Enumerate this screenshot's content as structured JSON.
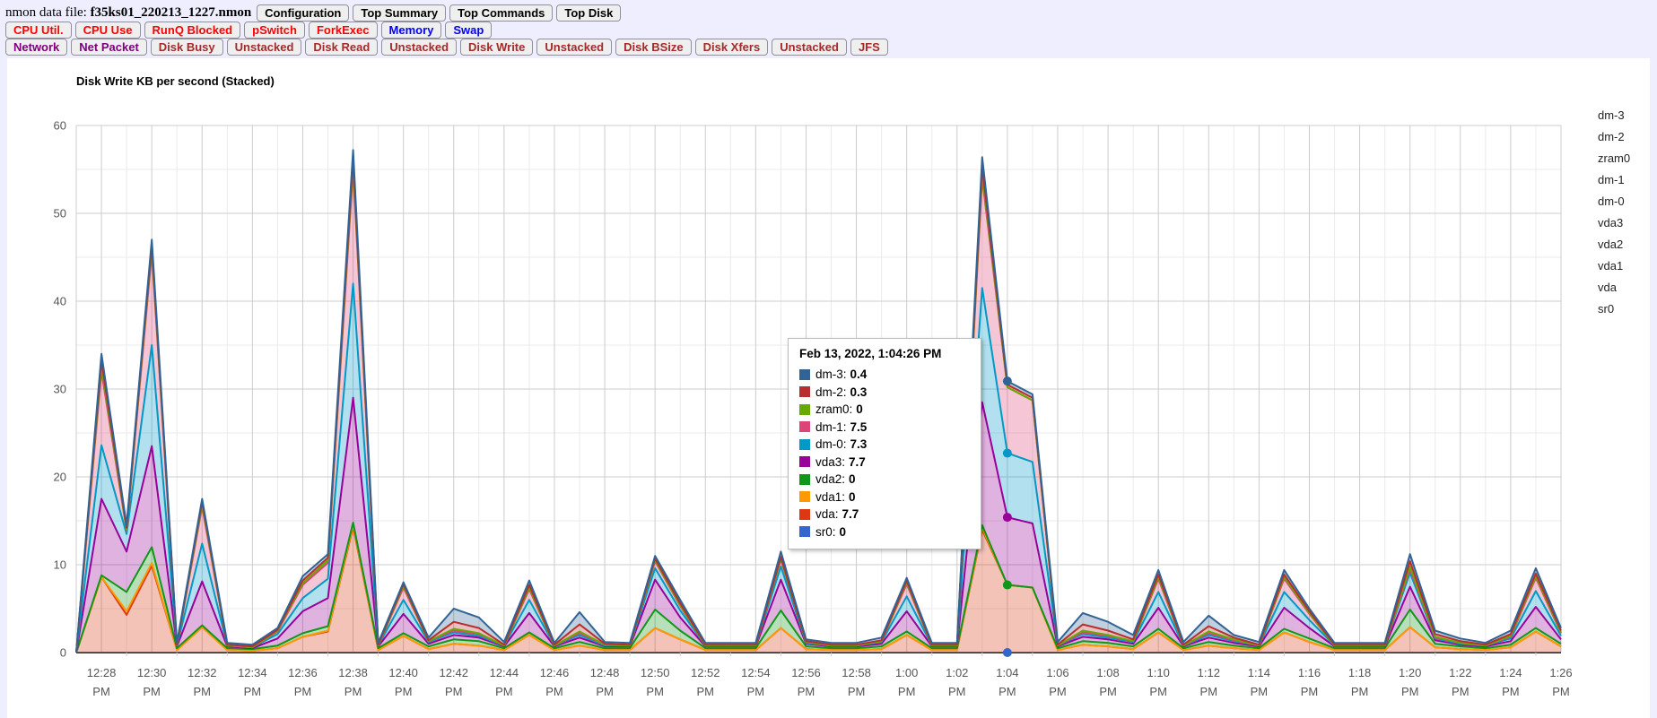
{
  "header": {
    "file_label": "nmon data file:",
    "file_name": "f35ks01_220213_1227.nmon",
    "buttons": [
      "Configuration",
      "Top Summary",
      "Top Commands",
      "Top Disk"
    ]
  },
  "nav": {
    "rows": [
      {
        "items": [
          {
            "label": "CPU Util.",
            "color": "#ff0000"
          },
          {
            "label": "CPU Use",
            "color": "#ff0000"
          },
          {
            "label": "RunQ Blocked",
            "color": "#ff0000"
          },
          {
            "label": "pSwitch",
            "color": "#ff0000"
          },
          {
            "label": "ForkExec",
            "color": "#ff0000"
          },
          {
            "label": "Memory",
            "color": "#0000ff"
          },
          {
            "label": "Swap",
            "color": "#0000ff"
          }
        ]
      },
      {
        "items": [
          {
            "label": "Network",
            "color": "#800080"
          },
          {
            "label": "Net Packet",
            "color": "#800080"
          },
          {
            "label": "Disk Busy",
            "color": "#a52a2a"
          },
          {
            "label": "Unstacked",
            "color": "#a52a2a"
          },
          {
            "label": "Disk Read",
            "color": "#a52a2a"
          },
          {
            "label": "Unstacked",
            "color": "#a52a2a"
          },
          {
            "label": "Disk Write",
            "color": "#a52a2a"
          },
          {
            "label": "Unstacked",
            "color": "#a52a2a"
          },
          {
            "label": "Disk BSize",
            "color": "#a52a2a"
          },
          {
            "label": "Disk Xfers",
            "color": "#a52a2a"
          },
          {
            "label": "Unstacked",
            "color": "#a52a2a"
          },
          {
            "label": "JFS",
            "color": "#a52a2a"
          }
        ]
      }
    ]
  },
  "chart_data": {
    "type": "area",
    "stacked": true,
    "title": "Disk Write KB per second (Stacked)",
    "xlabel": "",
    "ylabel": "",
    "ylim": [
      0,
      60
    ],
    "y_ticks": [
      0,
      10,
      20,
      30,
      40,
      50,
      60
    ],
    "grid": true,
    "legend_position": "right",
    "x_tick_labels": [
      "12:28",
      "12:30",
      "12:32",
      "12:34",
      "12:36",
      "12:38",
      "12:40",
      "12:42",
      "12:44",
      "12:46",
      "12:48",
      "12:50",
      "12:52",
      "12:54",
      "12:56",
      "12:58",
      "1:00",
      "1:02",
      "1:04",
      "1:06",
      "1:08",
      "1:10",
      "1:12",
      "1:14",
      "1:16",
      "1:18",
      "1:20",
      "1:22",
      "1:24",
      "1:26"
    ],
    "x_tick_suffix": "PM",
    "stack_order_bottom_to_top": [
      "sr0",
      "vda",
      "vda1",
      "vda2",
      "vda3",
      "dm-0",
      "dm-1",
      "zram0",
      "dm-2",
      "dm-3"
    ],
    "series": [
      {
        "name": "sr0",
        "color": "#3366cc",
        "values": [
          0,
          0,
          0,
          0,
          0,
          0,
          0,
          0,
          0,
          0,
          0,
          0,
          0,
          0,
          0,
          0,
          0,
          0,
          0,
          0,
          0,
          0,
          0,
          0,
          0,
          0,
          0,
          0,
          0,
          0,
          0,
          0,
          0,
          0,
          0,
          0,
          0,
          0,
          0,
          0,
          0,
          0,
          0,
          0,
          0,
          0,
          0,
          0,
          0,
          0,
          0,
          0,
          0,
          0,
          0,
          0,
          0,
          0,
          0,
          0
        ]
      },
      {
        "name": "vda",
        "color": "#dc3912",
        "values": [
          0,
          8.6,
          4.3,
          9.9,
          0.3,
          2.9,
          0.3,
          0.2,
          0.5,
          1.8,
          2.4,
          14.3,
          0.3,
          1.9,
          0.4,
          1.0,
          0.8,
          0.3,
          2.0,
          0.3,
          0.8,
          0.3,
          0.3,
          2.8,
          1.5,
          0.3,
          0.3,
          0.3,
          2.8,
          0.4,
          0.3,
          0.3,
          0.4,
          2.0,
          0.3,
          0.3,
          14.0,
          7.7,
          7.4,
          0.3,
          0.9,
          0.7,
          0.4,
          2.3,
          0.3,
          0.8,
          0.5,
          0.3,
          2.3,
          1.2,
          0.3,
          0.3,
          0.3,
          2.9,
          0.6,
          0.4,
          0.3,
          0.6,
          2.4,
          0.7
        ]
      },
      {
        "name": "vda1",
        "color": "#ff9900",
        "values": [
          0,
          0,
          0.4,
          0.3,
          0,
          0,
          0,
          0,
          0,
          0,
          0.1,
          0.2,
          0,
          0,
          0,
          0,
          0,
          0,
          0,
          0,
          0,
          0,
          0,
          0,
          0,
          0,
          0,
          0,
          0,
          0,
          0,
          0,
          0,
          0,
          0,
          0,
          0.2,
          0,
          0,
          0,
          0,
          0,
          0,
          0,
          0,
          0,
          0,
          0,
          0,
          0,
          0,
          0,
          0,
          0,
          0,
          0,
          0,
          0,
          0,
          0
        ]
      },
      {
        "name": "vda2",
        "color": "#109618",
        "values": [
          0,
          0.2,
          2.2,
          1.8,
          0.2,
          0.2,
          0.2,
          0.2,
          0.3,
          0.4,
          0.5,
          0.3,
          0.2,
          0.3,
          0.3,
          0.5,
          0.5,
          0.2,
          0.3,
          0.2,
          0.4,
          0.2,
          0.2,
          2.1,
          1.0,
          0.2,
          0.2,
          0.2,
          2.0,
          0.3,
          0.2,
          0.2,
          0.3,
          0.4,
          0.2,
          0.2,
          0.3,
          0,
          0,
          0.2,
          0.4,
          0.4,
          0.3,
          0.4,
          0.2,
          0.4,
          0.3,
          0.2,
          0.4,
          0.4,
          0.2,
          0.2,
          0.2,
          2.0,
          0.4,
          0.3,
          0.2,
          0.3,
          0.4,
          0.3
        ]
      },
      {
        "name": "vda3",
        "color": "#990099",
        "values": [
          0,
          8.7,
          4.6,
          11.5,
          0.2,
          5.0,
          0.2,
          0.1,
          0.8,
          2.5,
          3.2,
          14.2,
          0.2,
          2.2,
          0.3,
          0.5,
          0.4,
          0.2,
          2.2,
          0.2,
          0.5,
          0.2,
          0.2,
          3.4,
          1.5,
          0.2,
          0.2,
          0.2,
          3.5,
          0.3,
          0.2,
          0.2,
          0.3,
          2.3,
          0.2,
          0.2,
          14.0,
          7.7,
          7.3,
          0.2,
          0.5,
          0.4,
          0.3,
          2.4,
          0.2,
          0.5,
          0.3,
          0.2,
          2.4,
          1.2,
          0.2,
          0.2,
          0.2,
          2.6,
          0.4,
          0.2,
          0.2,
          0.4,
          2.4,
          0.5
        ]
      },
      {
        "name": "dm-0",
        "color": "#0099c6",
        "values": [
          0,
          6.1,
          2.0,
          11.5,
          0.1,
          4.3,
          0.1,
          0.1,
          0.5,
          1.5,
          2.2,
          13.0,
          0.1,
          1.6,
          0.2,
          0.3,
          0.2,
          0.1,
          1.5,
          0.1,
          0.3,
          0.1,
          0.1,
          1.3,
          0.8,
          0.1,
          0.1,
          0.1,
          1.5,
          0.1,
          0.1,
          0.1,
          0.2,
          1.7,
          0.1,
          0.1,
          13.0,
          7.3,
          7.0,
          0.1,
          0.3,
          0.2,
          0.2,
          1.8,
          0.1,
          0.3,
          0.2,
          0.1,
          1.8,
          0.9,
          0.1,
          0.1,
          0.1,
          1.6,
          0.2,
          0.1,
          0.1,
          0.3,
          1.8,
          0.4
        ]
      },
      {
        "name": "dm-1",
        "color": "#dd4477",
        "values": [
          0,
          8.4,
          0.4,
          10.5,
          0,
          4.2,
          0,
          0,
          0.3,
          1.5,
          1.8,
          13.0,
          0,
          1.4,
          0.1,
          0.2,
          0.2,
          0,
          1.2,
          0,
          0.2,
          0.1,
          0,
          0.8,
          0.5,
          0,
          0,
          0,
          0.8,
          0.1,
          0,
          0,
          0.1,
          1.4,
          0,
          0,
          12.5,
          7.5,
          7.0,
          0,
          0.2,
          0.2,
          0.1,
          1.5,
          0,
          0.2,
          0.1,
          0,
          1.5,
          0.7,
          0,
          0,
          0,
          0.4,
          0.1,
          0.1,
          0,
          0.2,
          1.5,
          0.3
        ]
      },
      {
        "name": "zram0",
        "color": "#66aa00",
        "values": [
          0,
          0.6,
          0.1,
          0.5,
          0,
          0.3,
          0,
          0,
          0.1,
          0.2,
          0.3,
          0.6,
          0,
          0.2,
          0,
          0.2,
          0.1,
          0,
          0.2,
          0,
          0.2,
          0,
          0,
          0.1,
          0.1,
          0,
          0,
          0,
          0.1,
          0,
          0,
          0,
          0,
          0.2,
          0,
          0,
          0.6,
          0,
          0,
          0,
          0.2,
          0.1,
          0,
          0.2,
          0,
          0.2,
          0.1,
          0,
          0.2,
          0.1,
          0,
          0,
          0,
          0.3,
          0.1,
          0,
          0,
          0.1,
          0.2,
          0.1
        ]
      },
      {
        "name": "dm-2",
        "color": "#b82e2e",
        "values": [
          0,
          0.6,
          0.2,
          0.4,
          0.1,
          0.3,
          0.1,
          0.1,
          0.1,
          0.3,
          0.3,
          0.6,
          0.1,
          0.2,
          0.1,
          0.8,
          0.6,
          0.1,
          0.3,
          0.1,
          0.8,
          0.1,
          0.1,
          0.2,
          0.2,
          0.1,
          0.1,
          0.1,
          0.2,
          0.1,
          0.1,
          0.1,
          0.1,
          0.2,
          0.1,
          0.1,
          0.7,
          0.3,
          0.3,
          0.1,
          0.7,
          0.5,
          0.2,
          0.3,
          0.1,
          0.6,
          0.2,
          0.1,
          0.3,
          0.2,
          0.1,
          0.1,
          0.1,
          0.6,
          0.3,
          0.2,
          0.1,
          0.2,
          0.3,
          0.2
        ]
      },
      {
        "name": "dm-3",
        "color": "#316395",
        "values": [
          0,
          0.8,
          0.3,
          0.6,
          0.2,
          0.3,
          0.2,
          0.2,
          0.2,
          0.5,
          0.4,
          1.0,
          0.2,
          0.2,
          0.3,
          1.5,
          1.2,
          0.3,
          0.5,
          0.2,
          1.4,
          0.2,
          0.2,
          0.3,
          0.4,
          0.2,
          0.2,
          0.2,
          0.6,
          0.2,
          0.2,
          0.2,
          0.3,
          0.3,
          0.2,
          0.2,
          1.1,
          0.4,
          0.4,
          0.3,
          1.3,
          1.0,
          0.5,
          0.5,
          0.3,
          1.2,
          0.3,
          0.3,
          0.5,
          0.3,
          0.2,
          0.2,
          0.2,
          0.8,
          0.4,
          0.3,
          0.2,
          0.4,
          0.6,
          0.3
        ]
      }
    ],
    "legend": [
      {
        "name": "dm-3",
        "color": "#316395"
      },
      {
        "name": "dm-2",
        "color": "#b82e2e"
      },
      {
        "name": "zram0",
        "color": "#66aa00"
      },
      {
        "name": "dm-1",
        "color": "#dd4477"
      },
      {
        "name": "dm-0",
        "color": "#0099c6"
      },
      {
        "name": "vda3",
        "color": "#990099"
      },
      {
        "name": "vda2",
        "color": "#109618"
      },
      {
        "name": "vda1",
        "color": "#ff9900"
      },
      {
        "name": "vda",
        "color": "#dc3912"
      },
      {
        "name": "sr0",
        "color": "#3366cc"
      }
    ],
    "tooltip": {
      "title": "Feb 13, 2022, 1:04:26 PM",
      "point_index": 37,
      "items": [
        {
          "name": "dm-3",
          "value": "0.4",
          "color": "#316395"
        },
        {
          "name": "dm-2",
          "value": "0.3",
          "color": "#b82e2e"
        },
        {
          "name": "zram0",
          "value": "0",
          "color": "#66aa00"
        },
        {
          "name": "dm-1",
          "value": "7.5",
          "color": "#dd4477"
        },
        {
          "name": "dm-0",
          "value": "7.3",
          "color": "#0099c6"
        },
        {
          "name": "vda3",
          "value": "7.7",
          "color": "#990099"
        },
        {
          "name": "vda2",
          "value": "0",
          "color": "#109618"
        },
        {
          "name": "vda1",
          "value": "0",
          "color": "#ff9900"
        },
        {
          "name": "vda",
          "value": "7.7",
          "color": "#dc3912"
        },
        {
          "name": "sr0",
          "value": "0",
          "color": "#3366cc"
        }
      ],
      "dot_series": [
        "dm-3",
        "dm-0",
        "vda3",
        "vda2",
        "sr0"
      ]
    },
    "colors": {
      "major_grid": "#cccccc",
      "minor_grid": "#ebebeb",
      "baseline": "#333333",
      "axis_text": "#555555"
    }
  }
}
